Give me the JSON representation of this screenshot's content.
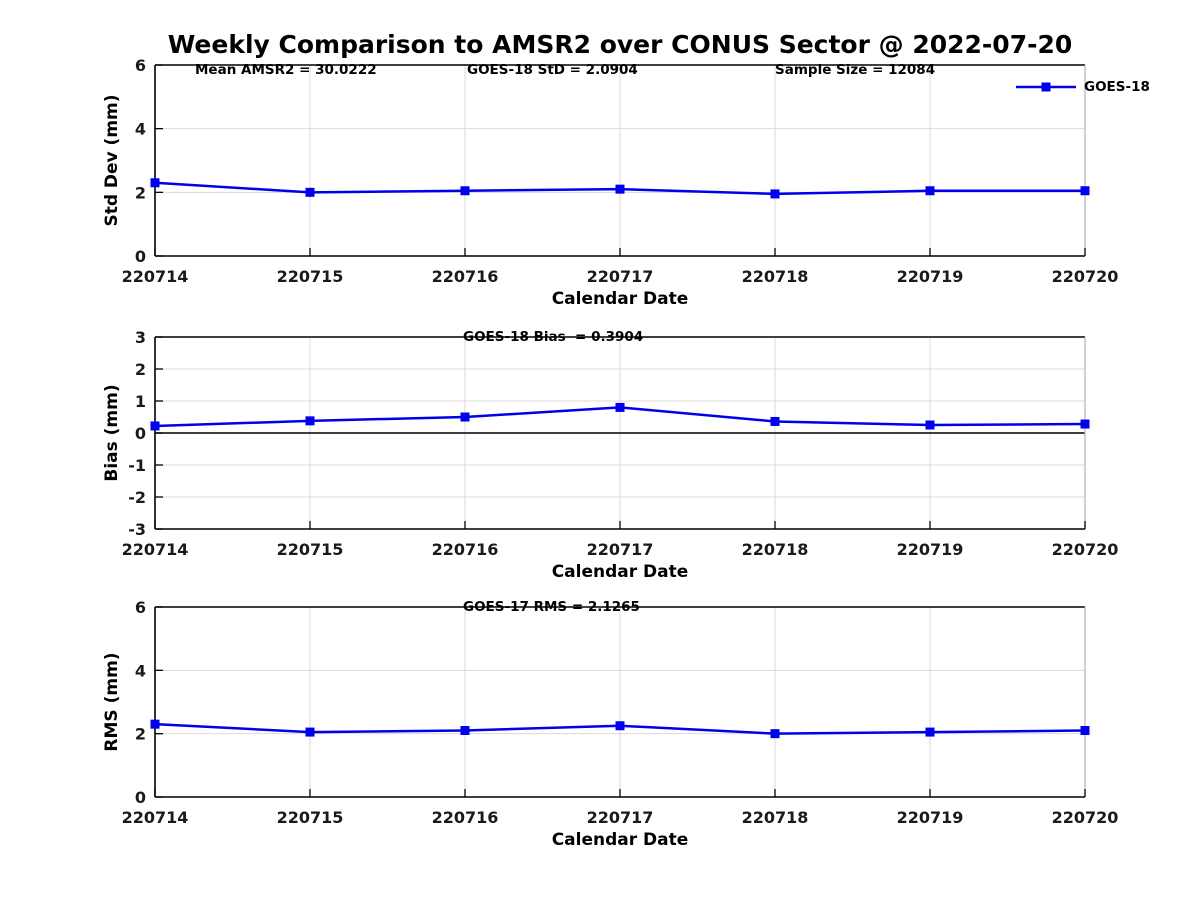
{
  "title": "Weekly Comparison to AMSR2 over CONUS Sector @ 2022-07-20",
  "legend": {
    "series_label": "GOES-18"
  },
  "colors": {
    "series": "#0000EE",
    "grid": "#D9D9D9",
    "axis": "#000000",
    "tick_label": "#1a1a1a",
    "zero_line": "#000000",
    "right_spine": "#b5b5b5"
  },
  "x_axis": {
    "label": "Calendar Date",
    "tick_labels": [
      "220714",
      "220715",
      "220716",
      "220717",
      "220718",
      "220719",
      "220720"
    ]
  },
  "chart_data": [
    {
      "type": "line",
      "name": "std-dev",
      "annotations": [
        "Mean AMSR2 = 30.0222",
        "GOES-18 StD = 2.0904",
        "Sample Size = 12084"
      ],
      "ylabel": "Std Dev (mm)",
      "xlabel": "Calendar Date",
      "categories": [
        "220714",
        "220715",
        "220716",
        "220717",
        "220718",
        "220719",
        "220720"
      ],
      "series": [
        {
          "name": "GOES-18",
          "values": [
            2.3,
            2.0,
            2.05,
            2.1,
            1.95,
            2.05,
            2.05
          ]
        }
      ],
      "ylim": [
        0,
        6
      ],
      "yticks": [
        0,
        2,
        4,
        6
      ],
      "grid": true,
      "zero_line": false,
      "legend_position": "top-right-outside"
    },
    {
      "type": "line",
      "name": "bias",
      "annotations": [
        "GOES-18 Bias  = 0.3904"
      ],
      "ylabel": "Bias (mm)",
      "xlabel": "Calendar Date",
      "categories": [
        "220714",
        "220715",
        "220716",
        "220717",
        "220718",
        "220719",
        "220720"
      ],
      "series": [
        {
          "name": "GOES-18",
          "values": [
            0.22,
            0.38,
            0.5,
            0.8,
            0.36,
            0.25,
            0.28
          ]
        }
      ],
      "ylim": [
        -3,
        3
      ],
      "yticks": [
        -3,
        -2,
        -1,
        0,
        1,
        2,
        3
      ],
      "grid": true,
      "zero_line": true
    },
    {
      "type": "line",
      "name": "rms",
      "annotations": [
        "GOES-17 RMS = 2.1265"
      ],
      "ylabel": "RMS (mm)",
      "xlabel": "Calendar Date",
      "categories": [
        "220714",
        "220715",
        "220716",
        "220717",
        "220718",
        "220719",
        "220720"
      ],
      "series": [
        {
          "name": "GOES-18",
          "values": [
            2.3,
            2.05,
            2.1,
            2.25,
            2.0,
            2.05,
            2.1
          ]
        }
      ],
      "ylim": [
        0,
        6
      ],
      "yticks": [
        0,
        2,
        4,
        6
      ],
      "grid": true,
      "zero_line": false
    }
  ]
}
